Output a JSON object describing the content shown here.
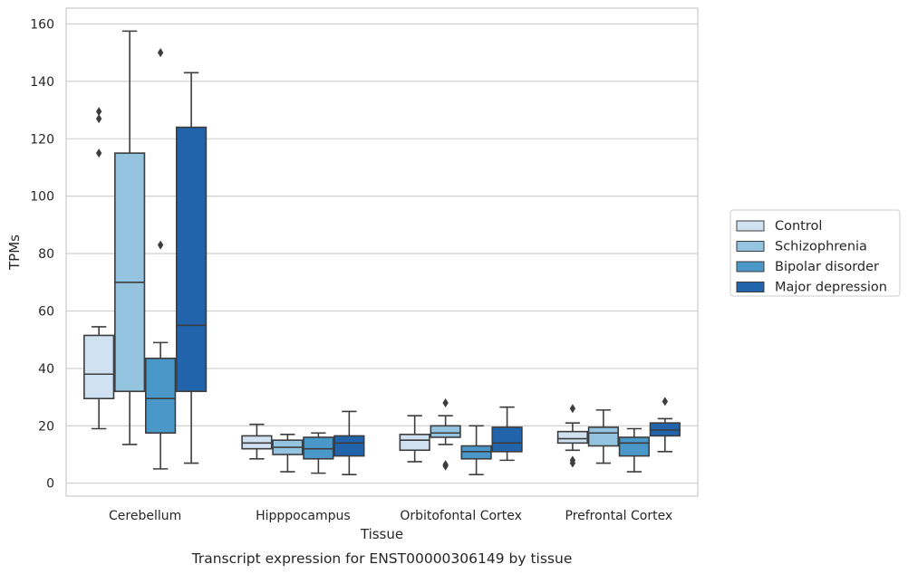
{
  "chart_data": {
    "type": "boxplot",
    "caption": "Transcript expression for ENST00000306149 by tissue",
    "xlabel": "Tissue",
    "ylabel": "TPMs",
    "ylim": [
      -4.5,
      165.5
    ],
    "yticks": [
      0,
      20,
      40,
      60,
      80,
      100,
      120,
      140,
      160
    ],
    "grid": "horizontal",
    "legend_position": "right",
    "categories": [
      "Cerebellum",
      "Hipppocampus",
      "Orbitofontal Cortex",
      "Prefrontal Cortex"
    ],
    "series": [
      {
        "name": "Control",
        "color": "#d0e1f2",
        "boxes": [
          {
            "whislo": 19,
            "q1": 29.5,
            "med": 38,
            "q3": 51.5,
            "whishi": 54.5,
            "fliers": [
              115,
              127,
              129.5
            ]
          },
          {
            "whislo": 8.5,
            "q1": 12,
            "med": 14,
            "q3": 16.5,
            "whishi": 20.5,
            "fliers": []
          },
          {
            "whislo": 7.5,
            "q1": 11.5,
            "med": 15,
            "q3": 17,
            "whishi": 23.5,
            "fliers": []
          },
          {
            "whislo": 11.5,
            "q1": 14,
            "med": 15.5,
            "q3": 18,
            "whishi": 21,
            "fliers": [
              7,
              8,
              26
            ]
          }
        ]
      },
      {
        "name": "Schizophrenia",
        "color": "#94c4df",
        "boxes": [
          {
            "whislo": 13.5,
            "q1": 32,
            "med": 70,
            "q3": 115,
            "whishi": 157.5,
            "fliers": []
          },
          {
            "whislo": 4,
            "q1": 10,
            "med": 12.5,
            "q3": 15,
            "whishi": 17,
            "fliers": []
          },
          {
            "whislo": 13.5,
            "q1": 16,
            "med": 17.5,
            "q3": 20,
            "whishi": 23.5,
            "fliers": [
              6,
              6.5,
              28
            ]
          },
          {
            "whislo": 7,
            "q1": 13,
            "med": 17.5,
            "q3": 19.5,
            "whishi": 25.5,
            "fliers": []
          }
        ]
      },
      {
        "name": "Bipolar disorder",
        "color": "#4a98c9",
        "boxes": [
          {
            "whislo": 5,
            "q1": 17.5,
            "med": 29.5,
            "q3": 43.5,
            "whishi": 49,
            "fliers": [
              83,
              150
            ]
          },
          {
            "whislo": 3.5,
            "q1": 8.5,
            "med": 12,
            "q3": 16,
            "whishi": 17.5,
            "fliers": []
          },
          {
            "whislo": 3,
            "q1": 8.5,
            "med": 11,
            "q3": 13,
            "whishi": 20,
            "fliers": []
          },
          {
            "whislo": 4,
            "q1": 9.5,
            "med": 14,
            "q3": 16,
            "whishi": 19,
            "fliers": []
          }
        ]
      },
      {
        "name": "Major depression",
        "color": "#2164ab",
        "boxes": [
          {
            "whislo": 7,
            "q1": 32,
            "med": 55,
            "q3": 124,
            "whishi": 143,
            "fliers": []
          },
          {
            "whislo": 3,
            "q1": 9.5,
            "med": 14,
            "q3": 16.5,
            "whishi": 25,
            "fliers": []
          },
          {
            "whislo": 8,
            "q1": 11,
            "med": 14,
            "q3": 19.5,
            "whishi": 26.5,
            "fliers": []
          },
          {
            "whislo": 11,
            "q1": 16.5,
            "med": 18.5,
            "q3": 21,
            "whishi": 22.5,
            "fliers": [
              28.5
            ]
          }
        ]
      }
    ]
  }
}
